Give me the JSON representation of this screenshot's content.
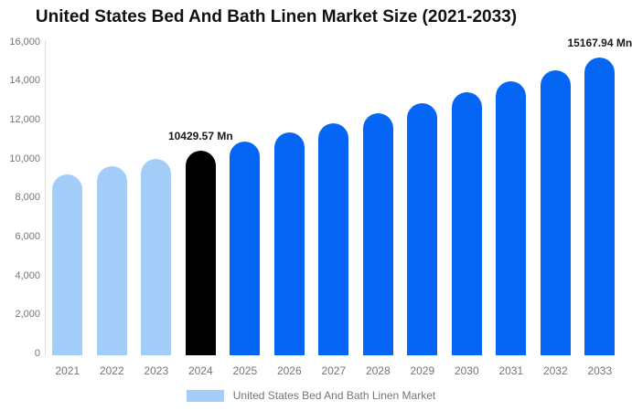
{
  "title": "United States Bed And Bath Linen Market Size (2021-2033)",
  "chart_data": {
    "type": "bar",
    "title": "United States Bed And Bath Linen Market Size (2021-2033)",
    "categories": [
      "2021",
      "2022",
      "2023",
      "2024",
      "2025",
      "2026",
      "2027",
      "2028",
      "2029",
      "2030",
      "2031",
      "2032",
      "2033"
    ],
    "values": [
      9205,
      9597,
      10004,
      10429.57,
      10873,
      11335,
      11817,
      12319,
      12842,
      13388,
      13957,
      14550,
      15167.94
    ],
    "values_unit": "Mn",
    "values_note": "2024 and 2033 values are printed on the chart; all other values estimated from bar heights against the axis",
    "bar_colors": [
      "#A4CDFA",
      "#A4CDFA",
      "#A4CDFA",
      "#000000",
      "#0566F6",
      "#0566F6",
      "#0566F6",
      "#0566F6",
      "#0566F6",
      "#0566F6",
      "#0566F6",
      "#0566F6",
      "#0566F6"
    ],
    "data_labels": [
      {
        "index": 3,
        "text": "10429.57 Mn"
      },
      {
        "index": 12,
        "text": "15167.94 Mn"
      }
    ],
    "xlabel": "",
    "ylabel": "",
    "ylim": [
      0,
      16000
    ],
    "ytick_values": [
      0,
      2000,
      4000,
      6000,
      8000,
      10000,
      12000,
      14000,
      16000
    ],
    "ytick_labels": [
      "0",
      "2,000",
      "4,000",
      "6,000",
      "8,000",
      "10,000",
      "12,000",
      "14,000",
      "16,000"
    ],
    "grid": false,
    "legend": {
      "position": "bottom",
      "entries": [
        {
          "label": "United States Bed And Bath Linen Market",
          "swatch_color": "#A4CDFA"
        }
      ]
    }
  },
  "colors": {
    "historical_bar": "#A4CDFA",
    "highlight_bar": "#000000",
    "forecast_bar": "#0566F6",
    "axis_line": "#DDDDDD",
    "tick_text": "#757575",
    "title_text": "#111111",
    "data_label_text": "#1A1A1A",
    "background": "#FFFFFF"
  }
}
